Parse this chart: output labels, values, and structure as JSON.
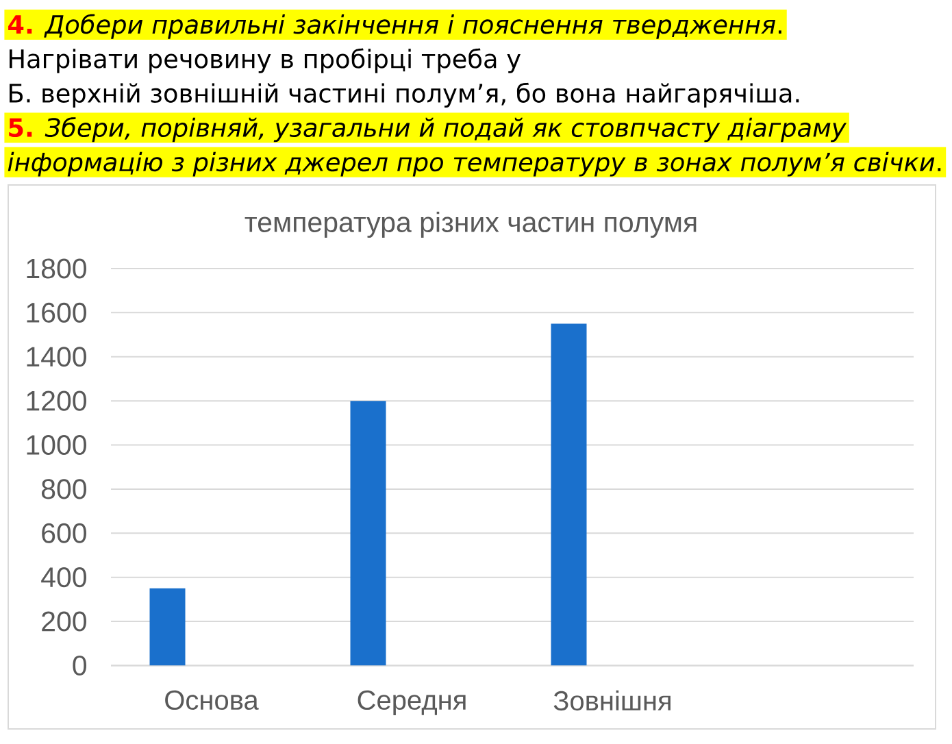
{
  "chart_data": {
    "type": "bar",
    "title": "температура різних частин полумя",
    "categories": [
      "Основа",
      "Середня",
      "Зовнішня",
      null
    ],
    "values": [
      350,
      1200,
      1550,
      null
    ],
    "color": "#1a70cc",
    "ylim": [
      0,
      1800
    ],
    "yticks": [
      0,
      200,
      400,
      600,
      800,
      1000,
      1200,
      1400,
      1600,
      1800
    ],
    "grid": "y",
    "annotations": [
      "**4.** *Добери правильні закінчення і пояснення твердження*.",
      "Нагрівати речовину в пробірці треба у",
      "Б. верхній зовнішній частині полум’я, бо вона найгарячіша.",
      "**5.** *Збери, порівняй, узагальни й подай як стовпчасту діаграму*",
      "*інформацію з різних джерел про температуру в зонах полум’я свічки*."
    ]
  }
}
